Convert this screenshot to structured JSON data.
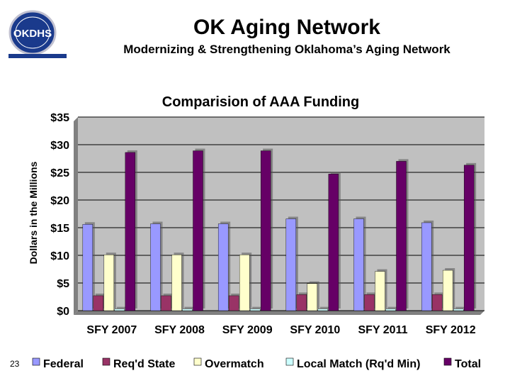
{
  "slide": {
    "title": "OK Aging Network",
    "subtitle": "Modernizing & Strengthening Oklahoma’s Aging Network",
    "page_number": "23",
    "logo_text": "OKDHS"
  },
  "colors": {
    "Federal": "#9999ff",
    "Req'd State": "#993366",
    "Overmatch": "#ffffcc",
    "Local Match (Rq'd Min)": "#ccffff",
    "Total": "#660066",
    "plot_bg": "#c0c0c0"
  },
  "chart_data": {
    "type": "bar",
    "title": "Comparision of AAA Funding",
    "ylabel": "Dollars in the Millions",
    "categories": [
      "SFY 2007",
      "SFY 2008",
      "SFY 2009",
      "SFY 2010",
      "SFY 2011",
      "SFY 2012"
    ],
    "yticks": [
      "$35",
      "$30",
      "$25",
      "$20",
      "$15",
      "$10",
      "$5",
      "$0"
    ],
    "ylim": [
      0,
      35
    ],
    "grid": true,
    "legend_position": "bottom",
    "series": [
      {
        "name": "Federal",
        "values": [
          15.6,
          15.7,
          15.7,
          16.6,
          16.6,
          15.9
        ]
      },
      {
        "name": "Req'd State",
        "values": [
          2.7,
          2.7,
          2.7,
          2.9,
          2.9,
          2.9
        ]
      },
      {
        "name": "Overmatch",
        "values": [
          10.1,
          10.1,
          10.1,
          4.9,
          7.1,
          7.3
        ]
      },
      {
        "name": "Local Match (Rq'd Min)",
        "values": [
          0.3,
          0.3,
          0.3,
          0.3,
          0.3,
          0.3
        ]
      },
      {
        "name": "Total",
        "values": [
          28.6,
          28.9,
          28.9,
          24.7,
          27.0,
          26.3
        ]
      }
    ]
  }
}
